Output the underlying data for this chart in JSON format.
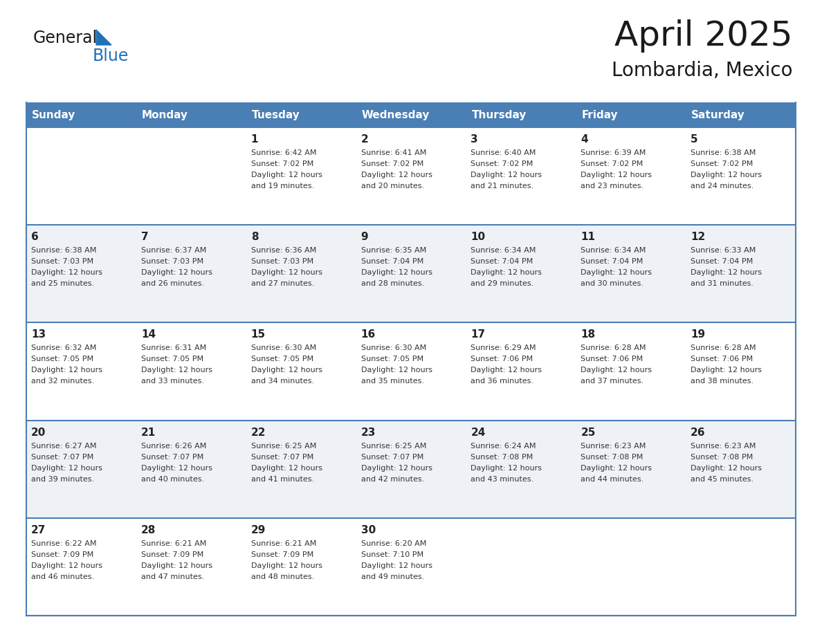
{
  "title": "April 2025",
  "subtitle": "Lombardia, Mexico",
  "header_color": "#4a7fb5",
  "header_text_color": "#ffffff",
  "row_color_odd": "#ffffff",
  "row_color_even": "#eef2f7",
  "white_color": "#ffffff",
  "border_color": "#4a7fb5",
  "text_color": "#333333",
  "day_num_color": "#222222",
  "day_names": [
    "Sunday",
    "Monday",
    "Tuesday",
    "Wednesday",
    "Thursday",
    "Friday",
    "Saturday"
  ],
  "weeks": [
    [
      {
        "day": "",
        "sunrise": "",
        "sunset": "",
        "daylight": ""
      },
      {
        "day": "",
        "sunrise": "",
        "sunset": "",
        "daylight": ""
      },
      {
        "day": "1",
        "sunrise": "6:42 AM",
        "sunset": "7:02 PM",
        "daylight": "12 hours and 19 minutes."
      },
      {
        "day": "2",
        "sunrise": "6:41 AM",
        "sunset": "7:02 PM",
        "daylight": "12 hours and 20 minutes."
      },
      {
        "day": "3",
        "sunrise": "6:40 AM",
        "sunset": "7:02 PM",
        "daylight": "12 hours and 21 minutes."
      },
      {
        "day": "4",
        "sunrise": "6:39 AM",
        "sunset": "7:02 PM",
        "daylight": "12 hours and 23 minutes."
      },
      {
        "day": "5",
        "sunrise": "6:38 AM",
        "sunset": "7:02 PM",
        "daylight": "12 hours and 24 minutes."
      }
    ],
    [
      {
        "day": "6",
        "sunrise": "6:38 AM",
        "sunset": "7:03 PM",
        "daylight": "12 hours and 25 minutes."
      },
      {
        "day": "7",
        "sunrise": "6:37 AM",
        "sunset": "7:03 PM",
        "daylight": "12 hours and 26 minutes."
      },
      {
        "day": "8",
        "sunrise": "6:36 AM",
        "sunset": "7:03 PM",
        "daylight": "12 hours and 27 minutes."
      },
      {
        "day": "9",
        "sunrise": "6:35 AM",
        "sunset": "7:04 PM",
        "daylight": "12 hours and 28 minutes."
      },
      {
        "day": "10",
        "sunrise": "6:34 AM",
        "sunset": "7:04 PM",
        "daylight": "12 hours and 29 minutes."
      },
      {
        "day": "11",
        "sunrise": "6:34 AM",
        "sunset": "7:04 PM",
        "daylight": "12 hours and 30 minutes."
      },
      {
        "day": "12",
        "sunrise": "6:33 AM",
        "sunset": "7:04 PM",
        "daylight": "12 hours and 31 minutes."
      }
    ],
    [
      {
        "day": "13",
        "sunrise": "6:32 AM",
        "sunset": "7:05 PM",
        "daylight": "12 hours and 32 minutes."
      },
      {
        "day": "14",
        "sunrise": "6:31 AM",
        "sunset": "7:05 PM",
        "daylight": "12 hours and 33 minutes."
      },
      {
        "day": "15",
        "sunrise": "6:30 AM",
        "sunset": "7:05 PM",
        "daylight": "12 hours and 34 minutes."
      },
      {
        "day": "16",
        "sunrise": "6:30 AM",
        "sunset": "7:05 PM",
        "daylight": "12 hours and 35 minutes."
      },
      {
        "day": "17",
        "sunrise": "6:29 AM",
        "sunset": "7:06 PM",
        "daylight": "12 hours and 36 minutes."
      },
      {
        "day": "18",
        "sunrise": "6:28 AM",
        "sunset": "7:06 PM",
        "daylight": "12 hours and 37 minutes."
      },
      {
        "day": "19",
        "sunrise": "6:28 AM",
        "sunset": "7:06 PM",
        "daylight": "12 hours and 38 minutes."
      }
    ],
    [
      {
        "day": "20",
        "sunrise": "6:27 AM",
        "sunset": "7:07 PM",
        "daylight": "12 hours and 39 minutes."
      },
      {
        "day": "21",
        "sunrise": "6:26 AM",
        "sunset": "7:07 PM",
        "daylight": "12 hours and 40 minutes."
      },
      {
        "day": "22",
        "sunrise": "6:25 AM",
        "sunset": "7:07 PM",
        "daylight": "12 hours and 41 minutes."
      },
      {
        "day": "23",
        "sunrise": "6:25 AM",
        "sunset": "7:07 PM",
        "daylight": "12 hours and 42 minutes."
      },
      {
        "day": "24",
        "sunrise": "6:24 AM",
        "sunset": "7:08 PM",
        "daylight": "12 hours and 43 minutes."
      },
      {
        "day": "25",
        "sunrise": "6:23 AM",
        "sunset": "7:08 PM",
        "daylight": "12 hours and 44 minutes."
      },
      {
        "day": "26",
        "sunrise": "6:23 AM",
        "sunset": "7:08 PM",
        "daylight": "12 hours and 45 minutes."
      }
    ],
    [
      {
        "day": "27",
        "sunrise": "6:22 AM",
        "sunset": "7:09 PM",
        "daylight": "12 hours and 46 minutes."
      },
      {
        "day": "28",
        "sunrise": "6:21 AM",
        "sunset": "7:09 PM",
        "daylight": "12 hours and 47 minutes."
      },
      {
        "day": "29",
        "sunrise": "6:21 AM",
        "sunset": "7:09 PM",
        "daylight": "12 hours and 48 minutes."
      },
      {
        "day": "30",
        "sunrise": "6:20 AM",
        "sunset": "7:10 PM",
        "daylight": "12 hours and 49 minutes."
      },
      {
        "day": "",
        "sunrise": "",
        "sunset": "",
        "daylight": ""
      },
      {
        "day": "",
        "sunrise": "",
        "sunset": "",
        "daylight": ""
      },
      {
        "day": "",
        "sunrise": "",
        "sunset": "",
        "daylight": ""
      }
    ]
  ],
  "logo_text1": "General",
  "logo_text2": "Blue",
  "logo_triangle_color": "#2171b5",
  "title_fontsize": 36,
  "subtitle_fontsize": 20,
  "header_fontsize": 11,
  "day_num_fontsize": 11,
  "cell_text_fontsize": 8
}
